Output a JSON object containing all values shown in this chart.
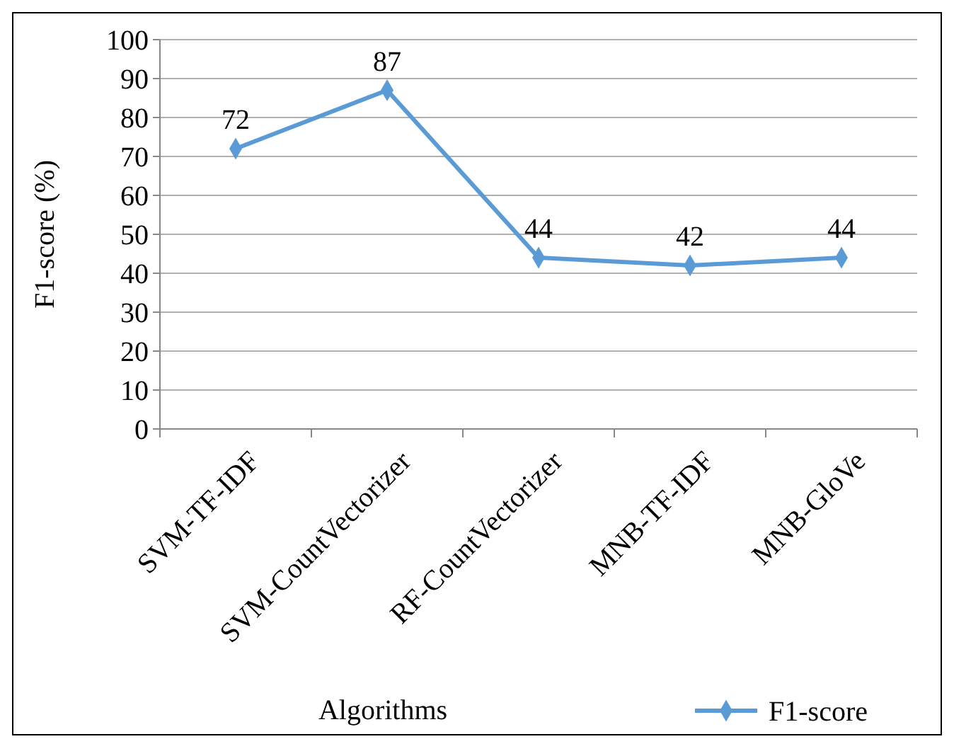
{
  "chart_data": {
    "type": "line",
    "xlabel": "Algorithms",
    "ylabel": "F1-score (%)",
    "categories": [
      "SVM-TF-IDF",
      "SVM-CountVectorizer",
      "RF-CountVectorizer",
      "MNB-TF-IDF",
      "MNB-GloVe"
    ],
    "series": [
      {
        "name": "F1-score",
        "color": "#5b9bd5",
        "values": [
          72,
          87,
          44,
          42,
          44
        ]
      }
    ],
    "ylim": [
      0,
      100
    ],
    "yticks": [
      0,
      10,
      20,
      30,
      40,
      50,
      60,
      70,
      80,
      90,
      100
    ],
    "grid": "y",
    "legend": "bottom right",
    "marker": "diamond",
    "line_style": "solid",
    "data_labels": true
  }
}
